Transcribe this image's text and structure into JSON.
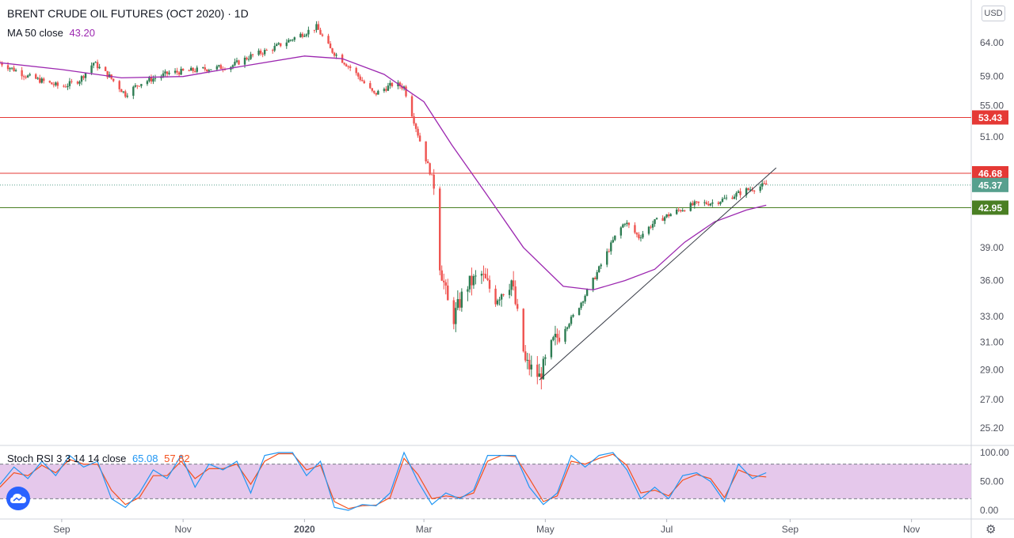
{
  "header": {
    "title": "BRENT CRUDE OIL FUTURES (OCT 2020) · 1D",
    "ma_label": "MA 50 close",
    "ma_value": "43.20",
    "stoch_label": "Stoch RSI 3 3 14 14 close",
    "stoch_k": "65.08",
    "stoch_d": "57.82"
  },
  "toolbar": {
    "currency": "USD",
    "logo_icon": "tradingview-cloud-icon",
    "settings_icon": "gear-icon"
  },
  "colors": {
    "up": "#26a69a",
    "up_body": "#2e7d53",
    "down": "#ef5350",
    "ma": "#9c27b0",
    "resistance": "#e53935",
    "support": "#4a7f23",
    "current": "#57a08e",
    "stoch_k": "#2196f3",
    "stoch_d": "#f4511e",
    "stoch_band": "#e1bee7"
  },
  "price_axis": {
    "scale": "log",
    "range": [
      24.2,
      71.0
    ],
    "ticks": [
      "64.00",
      "59.00",
      "55.00",
      "51.00",
      "39.00",
      "36.00",
      "33.00",
      "31.00",
      "29.00",
      "27.00",
      "25.20"
    ],
    "badges": [
      {
        "value": "53.43",
        "kind": "resistance"
      },
      {
        "value": "46.68",
        "kind": "resistance"
      },
      {
        "value": "45.37",
        "kind": "current"
      },
      {
        "value": "42.95",
        "kind": "support"
      }
    ]
  },
  "stoch_axis": {
    "ticks": [
      "100.00",
      "50.00",
      "0.00"
    ],
    "band": [
      20,
      80
    ]
  },
  "time_axis": {
    "labels": [
      {
        "text": "Sep",
        "date": "2019-09-01"
      },
      {
        "text": "Nov",
        "date": "2019-11-01"
      },
      {
        "text": "2020",
        "date": "2020-01-01"
      },
      {
        "text": "Mar",
        "date": "2020-03-01"
      },
      {
        "text": "May",
        "date": "2020-05-01"
      },
      {
        "text": "Jul",
        "date": "2020-07-01"
      },
      {
        "text": "Sep",
        "date": "2020-09-01"
      },
      {
        "text": "Nov",
        "date": "2020-11-01"
      }
    ]
  },
  "chart_data": {
    "type": "candlestick",
    "title": "BRENT CRUDE OIL FUTURES (OCT 2020) · 1D",
    "x_range": [
      "2019-08-01",
      "2020-12-01"
    ],
    "y_range": [
      24.2,
      71.0
    ],
    "y_scale": "log",
    "grid": false,
    "price_path": [
      [
        "2019-08-01",
        61.0
      ],
      [
        "2019-08-15",
        59.0
      ],
      [
        "2019-09-01",
        57.5
      ],
      [
        "2019-09-10",
        58.5
      ],
      [
        "2019-09-17",
        61.0
      ],
      [
        "2019-09-25",
        59.0
      ],
      [
        "2019-10-03",
        56.5
      ],
      [
        "2019-10-10",
        58.0
      ],
      [
        "2019-10-25",
        59.5
      ],
      [
        "2019-11-10",
        60.0
      ],
      [
        "2019-11-25",
        60.5
      ],
      [
        "2019-12-05",
        62.0
      ],
      [
        "2019-12-15",
        63.0
      ],
      [
        "2019-12-25",
        64.5
      ],
      [
        "2020-01-07",
        66.5
      ],
      [
        "2020-01-14",
        63.0
      ],
      [
        "2020-01-25",
        60.0
      ],
      [
        "2020-02-05",
        56.5
      ],
      [
        "2020-02-15",
        58.0
      ],
      [
        "2020-02-20",
        57.5
      ],
      [
        "2020-02-28",
        50.5
      ],
      [
        "2020-03-06",
        45.5
      ],
      [
        "2020-03-09",
        37.5
      ],
      [
        "2020-03-15",
        32.5
      ],
      [
        "2020-03-22",
        35.5
      ],
      [
        "2020-03-30",
        36.5
      ],
      [
        "2020-04-06",
        34.5
      ],
      [
        "2020-04-14",
        36.0
      ],
      [
        "2020-04-21",
        29.5
      ],
      [
        "2020-04-28",
        28.5
      ],
      [
        "2020-05-05",
        31.0
      ],
      [
        "2020-05-15",
        33.0
      ],
      [
        "2020-05-25",
        36.0
      ],
      [
        "2020-06-05",
        40.0
      ],
      [
        "2020-06-10",
        41.5
      ],
      [
        "2020-06-17",
        40.0
      ],
      [
        "2020-06-25",
        41.5
      ],
      [
        "2020-07-05",
        42.5
      ],
      [
        "2020-07-15",
        43.3
      ],
      [
        "2020-07-25",
        43.5
      ],
      [
        "2020-08-01",
        44.0
      ],
      [
        "2020-08-10",
        44.8
      ],
      [
        "2020-08-20",
        45.4
      ]
    ],
    "ma50": [
      [
        "2019-08-01",
        61.0
      ],
      [
        "2019-09-01",
        60.0
      ],
      [
        "2019-10-01",
        58.8
      ],
      [
        "2019-11-01",
        59.0
      ],
      [
        "2019-12-01",
        60.5
      ],
      [
        "2020-01-01",
        62.0
      ],
      [
        "2020-01-20",
        61.6
      ],
      [
        "2020-02-10",
        59.3
      ],
      [
        "2020-03-01",
        55.5
      ],
      [
        "2020-03-15",
        50.0
      ],
      [
        "2020-04-01",
        44.5
      ],
      [
        "2020-04-20",
        39.0
      ],
      [
        "2020-05-10",
        35.5
      ],
      [
        "2020-05-25",
        35.2
      ],
      [
        "2020-06-10",
        36.0
      ],
      [
        "2020-06-25",
        37.0
      ],
      [
        "2020-07-10",
        39.5
      ],
      [
        "2020-07-25",
        41.5
      ],
      [
        "2020-08-10",
        42.7
      ],
      [
        "2020-08-20",
        43.2
      ]
    ],
    "horizontal_lines": [
      {
        "value": 53.43,
        "label": "53.43"
      },
      {
        "value": 46.68,
        "label": "46.68"
      },
      {
        "value": 42.95,
        "label": "42.95"
      }
    ],
    "last_price": 45.37,
    "trendline": {
      "from": [
        "2020-04-28",
        28.3
      ],
      "to": [
        "2020-08-25",
        47.3
      ]
    },
    "stoch_rsi": {
      "k_last": 65.08,
      "d_last": 57.82,
      "range": [
        0,
        100
      ],
      "k": [
        [
          "2019-08-01",
          45
        ],
        [
          "2019-08-08",
          75
        ],
        [
          "2019-08-15",
          55
        ],
        [
          "2019-08-22",
          85
        ],
        [
          "2019-08-29",
          60
        ],
        [
          "2019-09-05",
          95
        ],
        [
          "2019-09-12",
          75
        ],
        [
          "2019-09-19",
          85
        ],
        [
          "2019-09-26",
          20
        ],
        [
          "2019-10-03",
          5
        ],
        [
          "2019-10-10",
          30
        ],
        [
          "2019-10-17",
          70
        ],
        [
          "2019-10-24",
          55
        ],
        [
          "2019-10-31",
          95
        ],
        [
          "2019-11-07",
          40
        ],
        [
          "2019-11-14",
          80
        ],
        [
          "2019-11-21",
          70
        ],
        [
          "2019-11-28",
          85
        ],
        [
          "2019-12-05",
          30
        ],
        [
          "2019-12-12",
          95
        ],
        [
          "2019-12-19",
          100
        ],
        [
          "2019-12-26",
          100
        ],
        [
          "2020-01-02",
          60
        ],
        [
          "2020-01-09",
          85
        ],
        [
          "2020-01-16",
          5
        ],
        [
          "2020-01-23",
          0
        ],
        [
          "2020-01-30",
          10
        ],
        [
          "2020-02-06",
          8
        ],
        [
          "2020-02-13",
          30
        ],
        [
          "2020-02-20",
          100
        ],
        [
          "2020-02-27",
          50
        ],
        [
          "2020-03-05",
          10
        ],
        [
          "2020-03-12",
          30
        ],
        [
          "2020-03-19",
          20
        ],
        [
          "2020-03-26",
          35
        ],
        [
          "2020-04-02",
          95
        ],
        [
          "2020-04-09",
          95
        ],
        [
          "2020-04-16",
          95
        ],
        [
          "2020-04-23",
          40
        ],
        [
          "2020-04-30",
          10
        ],
        [
          "2020-05-07",
          30
        ],
        [
          "2020-05-14",
          95
        ],
        [
          "2020-05-21",
          75
        ],
        [
          "2020-05-28",
          95
        ],
        [
          "2020-06-04",
          100
        ],
        [
          "2020-06-11",
          70
        ],
        [
          "2020-06-18",
          20
        ],
        [
          "2020-06-25",
          40
        ],
        [
          "2020-07-02",
          20
        ],
        [
          "2020-07-09",
          60
        ],
        [
          "2020-07-16",
          65
        ],
        [
          "2020-07-23",
          50
        ],
        [
          "2020-07-30",
          15
        ],
        [
          "2020-08-06",
          80
        ],
        [
          "2020-08-13",
          55
        ],
        [
          "2020-08-20",
          65
        ]
      ],
      "d": [
        [
          "2019-08-01",
          40
        ],
        [
          "2019-08-08",
          65
        ],
        [
          "2019-08-15",
          60
        ],
        [
          "2019-08-22",
          78
        ],
        [
          "2019-08-29",
          65
        ],
        [
          "2019-09-05",
          88
        ],
        [
          "2019-09-12",
          80
        ],
        [
          "2019-09-19",
          80
        ],
        [
          "2019-09-26",
          35
        ],
        [
          "2019-10-03",
          10
        ],
        [
          "2019-10-10",
          22
        ],
        [
          "2019-10-17",
          60
        ],
        [
          "2019-10-24",
          60
        ],
        [
          "2019-10-31",
          85
        ],
        [
          "2019-11-07",
          55
        ],
        [
          "2019-11-14",
          72
        ],
        [
          "2019-11-21",
          72
        ],
        [
          "2019-11-28",
          80
        ],
        [
          "2019-12-05",
          45
        ],
        [
          "2019-12-12",
          85
        ],
        [
          "2019-12-19",
          98
        ],
        [
          "2019-12-26",
          98
        ],
        [
          "2020-01-02",
          70
        ],
        [
          "2020-01-09",
          78
        ],
        [
          "2020-01-16",
          15
        ],
        [
          "2020-01-23",
          3
        ],
        [
          "2020-01-30",
          8
        ],
        [
          "2020-02-06",
          9
        ],
        [
          "2020-02-13",
          22
        ],
        [
          "2020-02-20",
          90
        ],
        [
          "2020-02-27",
          62
        ],
        [
          "2020-03-05",
          20
        ],
        [
          "2020-03-12",
          25
        ],
        [
          "2020-03-19",
          22
        ],
        [
          "2020-03-26",
          30
        ],
        [
          "2020-04-02",
          85
        ],
        [
          "2020-04-09",
          95
        ],
        [
          "2020-04-16",
          93
        ],
        [
          "2020-04-23",
          55
        ],
        [
          "2020-04-30",
          15
        ],
        [
          "2020-05-07",
          25
        ],
        [
          "2020-05-14",
          85
        ],
        [
          "2020-05-21",
          80
        ],
        [
          "2020-05-28",
          90
        ],
        [
          "2020-06-04",
          97
        ],
        [
          "2020-06-11",
          78
        ],
        [
          "2020-06-18",
          30
        ],
        [
          "2020-06-25",
          35
        ],
        [
          "2020-07-02",
          25
        ],
        [
          "2020-07-09",
          52
        ],
        [
          "2020-07-16",
          62
        ],
        [
          "2020-07-23",
          55
        ],
        [
          "2020-07-30",
          22
        ],
        [
          "2020-08-06",
          70
        ],
        [
          "2020-08-13",
          60
        ],
        [
          "2020-08-20",
          57.8
        ]
      ]
    }
  }
}
